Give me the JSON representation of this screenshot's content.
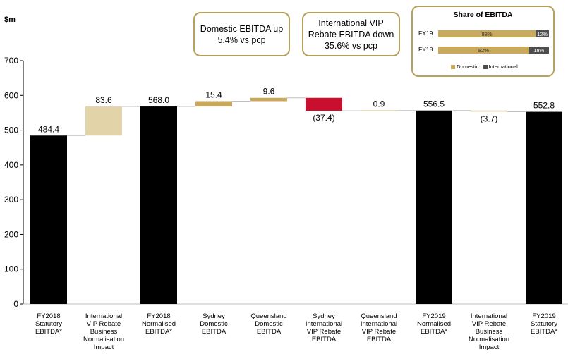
{
  "unit_label": "$m",
  "callouts": [
    "Domestic EBITDA up\n5.4% vs pcp",
    "International VIP\nRebate EBITDA down\n35.6% vs pcp"
  ],
  "colors": {
    "total": "#000000",
    "normalisation": "#e2d3a9",
    "increase": "#c9a95c",
    "decrease": "#c8102e",
    "small_change": "#e8ddc0",
    "border_gold": "#b8a15e",
    "international": "#4d4d4d"
  },
  "chart_data": {
    "type": "bar",
    "subtype": "waterfall",
    "ylabel": "$m",
    "ylim": [
      0,
      700
    ],
    "yticks": [
      0,
      100,
      200,
      300,
      400,
      500,
      600,
      700
    ],
    "grid": false,
    "categories": [
      "FY2018\nStatutory\nEBITDA*",
      "International\nVIP Rebate\nBusiness\nNormalisation\nImpact",
      "FY2018\nNormalised\nEBITDA*",
      "Sydney\nDomestic\nEBITDA",
      "Queensland\nDomestic\nEBITDA",
      "Sydney\nInternational\nVIP Rebate\nEBITDA",
      "Queensland\nInternational\nVIP Rebate\nEBITDA",
      "FY2019\nNormalised\nEBITDA*",
      "International\nVIP Rebate\nBusiness\nNormalisation\nImpact",
      "FY2019\nStatutory\nEBITDA*"
    ],
    "bars": [
      {
        "kind": "total",
        "value": 484.4,
        "label": "484.4",
        "color": "#000000"
      },
      {
        "kind": "delta",
        "value": 83.6,
        "label": "83.6",
        "color": "#e2d3a9"
      },
      {
        "kind": "total",
        "value": 568.0,
        "label": "568.0",
        "color": "#000000"
      },
      {
        "kind": "delta",
        "value": 15.4,
        "label": "15.4",
        "color": "#c9a95c"
      },
      {
        "kind": "delta",
        "value": 9.6,
        "label": "9.6",
        "color": "#c9a95c"
      },
      {
        "kind": "delta",
        "value": -37.4,
        "label": "(37.4)",
        "color": "#c8102e"
      },
      {
        "kind": "delta",
        "value": 0.9,
        "label": "0.9",
        "color": "#e8ddc0"
      },
      {
        "kind": "total",
        "value": 556.5,
        "label": "556.5",
        "color": "#000000"
      },
      {
        "kind": "delta",
        "value": -3.7,
        "label": "(3.7)",
        "color": "#e8ddc0"
      },
      {
        "kind": "total",
        "value": 552.8,
        "label": "552.8",
        "color": "#000000"
      }
    ],
    "inset": {
      "type": "bar",
      "stacked": true,
      "orientation": "horizontal",
      "title": "Share of EBITDA",
      "categories": [
        "FY19",
        "FY18"
      ],
      "series": [
        {
          "name": "Domestic",
          "values": [
            88,
            82
          ],
          "labels": [
            "88%",
            "82%"
          ],
          "color": "#c9a95c"
        },
        {
          "name": "International",
          "values": [
            12,
            18
          ],
          "labels": [
            "12%",
            "18%"
          ],
          "color": "#4d4d4d"
        }
      ],
      "legend": "bottom"
    }
  }
}
